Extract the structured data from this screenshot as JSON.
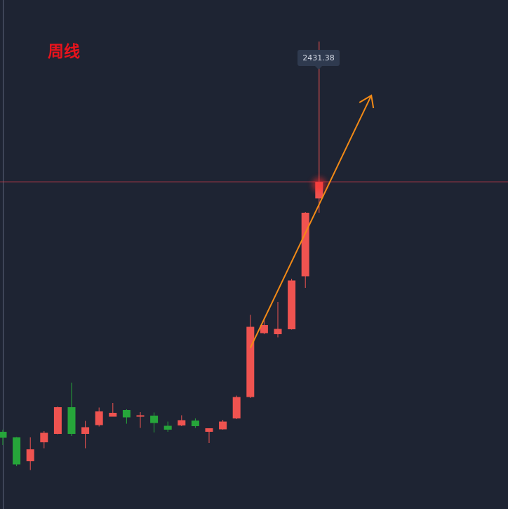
{
  "title": "周线",
  "crosshair": {
    "price_label": "2431.38"
  },
  "colors": {
    "background": "#1e2433",
    "up": "#ef5350",
    "down": "#26a53a",
    "arrow": "#f38a16",
    "title": "#e8131c",
    "crosshair": "#c0394a"
  },
  "chart_data": {
    "type": "candlestick",
    "timeframe": "weekly",
    "price_axis": {
      "range": [
        1100,
        2500
      ]
    },
    "highlighted_price": 2431.38,
    "trend_arrow": {
      "direction": "up",
      "from_candle": 18,
      "to_candle": 27
    },
    "candles": [
      {
        "open": 1320,
        "close": 1303,
        "high": 1326,
        "low": 1282
      },
      {
        "open": 1304,
        "close": 1227,
        "high": 1305,
        "low": 1222
      },
      {
        "open": 1236,
        "close": 1270,
        "high": 1304,
        "low": 1211
      },
      {
        "open": 1290,
        "close": 1317,
        "high": 1322,
        "low": 1273
      },
      {
        "open": 1314,
        "close": 1390,
        "high": 1392,
        "low": 1313
      },
      {
        "open": 1390,
        "close": 1314,
        "high": 1460,
        "low": 1308
      },
      {
        "open": 1314,
        "close": 1333,
        "high": 1351,
        "low": 1273
      },
      {
        "open": 1339,
        "close": 1378,
        "high": 1389,
        "low": 1335
      },
      {
        "open": 1363,
        "close": 1374,
        "high": 1402,
        "low": 1363
      },
      {
        "open": 1382,
        "close": 1361,
        "high": 1384,
        "low": 1343
      },
      {
        "open": 1363,
        "close": 1367,
        "high": 1376,
        "low": 1331
      },
      {
        "open": 1366,
        "close": 1345,
        "high": 1375,
        "low": 1318
      },
      {
        "open": 1337,
        "close": 1326,
        "high": 1349,
        "low": 1320
      },
      {
        "open": 1338,
        "close": 1353,
        "high": 1367,
        "low": 1336
      },
      {
        "open": 1352,
        "close": 1336,
        "high": 1358,
        "low": 1331
      },
      {
        "open": 1320,
        "close": 1330,
        "high": 1330,
        "low": 1288
      },
      {
        "open": 1327,
        "close": 1349,
        "high": 1354,
        "low": 1326
      },
      {
        "open": 1358,
        "close": 1419,
        "high": 1423,
        "low": 1356
      },
      {
        "open": 1419,
        "close": 1619,
        "high": 1653,
        "low": 1416
      },
      {
        "open": 1601,
        "close": 1624,
        "high": 1645,
        "low": 1598
      },
      {
        "open": 1598,
        "close": 1613,
        "high": 1690,
        "low": 1589
      },
      {
        "open": 1612,
        "close": 1751,
        "high": 1756,
        "low": 1611
      },
      {
        "open": 1763,
        "close": 1944,
        "high": 1946,
        "low": 1730
      },
      {
        "open": 1985,
        "close": 2032,
        "high": 2431.38,
        "low": 1944
      }
    ]
  }
}
